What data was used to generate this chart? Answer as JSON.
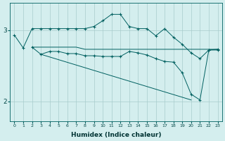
{
  "xlabel": "Humidex (Indice chaleur)",
  "background_color": "#d4eeee",
  "line_color": "#006060",
  "grid_color": "#a8cccc",
  "xlim": [
    -0.5,
    23.5
  ],
  "ylim": [
    1.72,
    3.38
  ],
  "yticks": [
    2,
    3
  ],
  "xticks": [
    0,
    1,
    2,
    3,
    4,
    5,
    6,
    7,
    8,
    9,
    10,
    11,
    12,
    13,
    14,
    15,
    16,
    17,
    18,
    19,
    20,
    21,
    22,
    23
  ],
  "line1_x": [
    0,
    1,
    2,
    3,
    4,
    5,
    6,
    7,
    8,
    9,
    10,
    11,
    12,
    13,
    14,
    15,
    16,
    17,
    18,
    19,
    20,
    21,
    22,
    23
  ],
  "line1_y": [
    2.93,
    2.75,
    3.02,
    3.02,
    3.02,
    3.02,
    3.02,
    3.02,
    3.02,
    3.05,
    3.13,
    3.22,
    3.22,
    3.05,
    3.02,
    3.02,
    2.92,
    3.02,
    2.9,
    2.8,
    2.68,
    2.6,
    2.72,
    2.72
  ],
  "line2_x": [
    2,
    3,
    4,
    5,
    6,
    7,
    8,
    9,
    10,
    11,
    12,
    13,
    14,
    15,
    16,
    17,
    18,
    19,
    20,
    21,
    22,
    23
  ],
  "line2_y": [
    2.76,
    2.76,
    2.76,
    2.76,
    2.76,
    2.76,
    2.73,
    2.73,
    2.73,
    2.73,
    2.73,
    2.73,
    2.73,
    2.73,
    2.73,
    2.73,
    2.73,
    2.73,
    2.73,
    2.73,
    2.73,
    2.73
  ],
  "line3_x": [
    2,
    3,
    4,
    5,
    6,
    7,
    8,
    9,
    10,
    11,
    12,
    13,
    14,
    15,
    16,
    17,
    18,
    19,
    20,
    21,
    22,
    23
  ],
  "line3_y": [
    2.76,
    2.66,
    2.7,
    2.7,
    2.67,
    2.67,
    2.64,
    2.64,
    2.63,
    2.63,
    2.63,
    2.7,
    2.68,
    2.65,
    2.6,
    2.56,
    2.55,
    2.4,
    2.1,
    2.02,
    2.72,
    2.73
  ],
  "line4_x": [
    3,
    20
  ],
  "line4_y": [
    2.66,
    2.02
  ]
}
